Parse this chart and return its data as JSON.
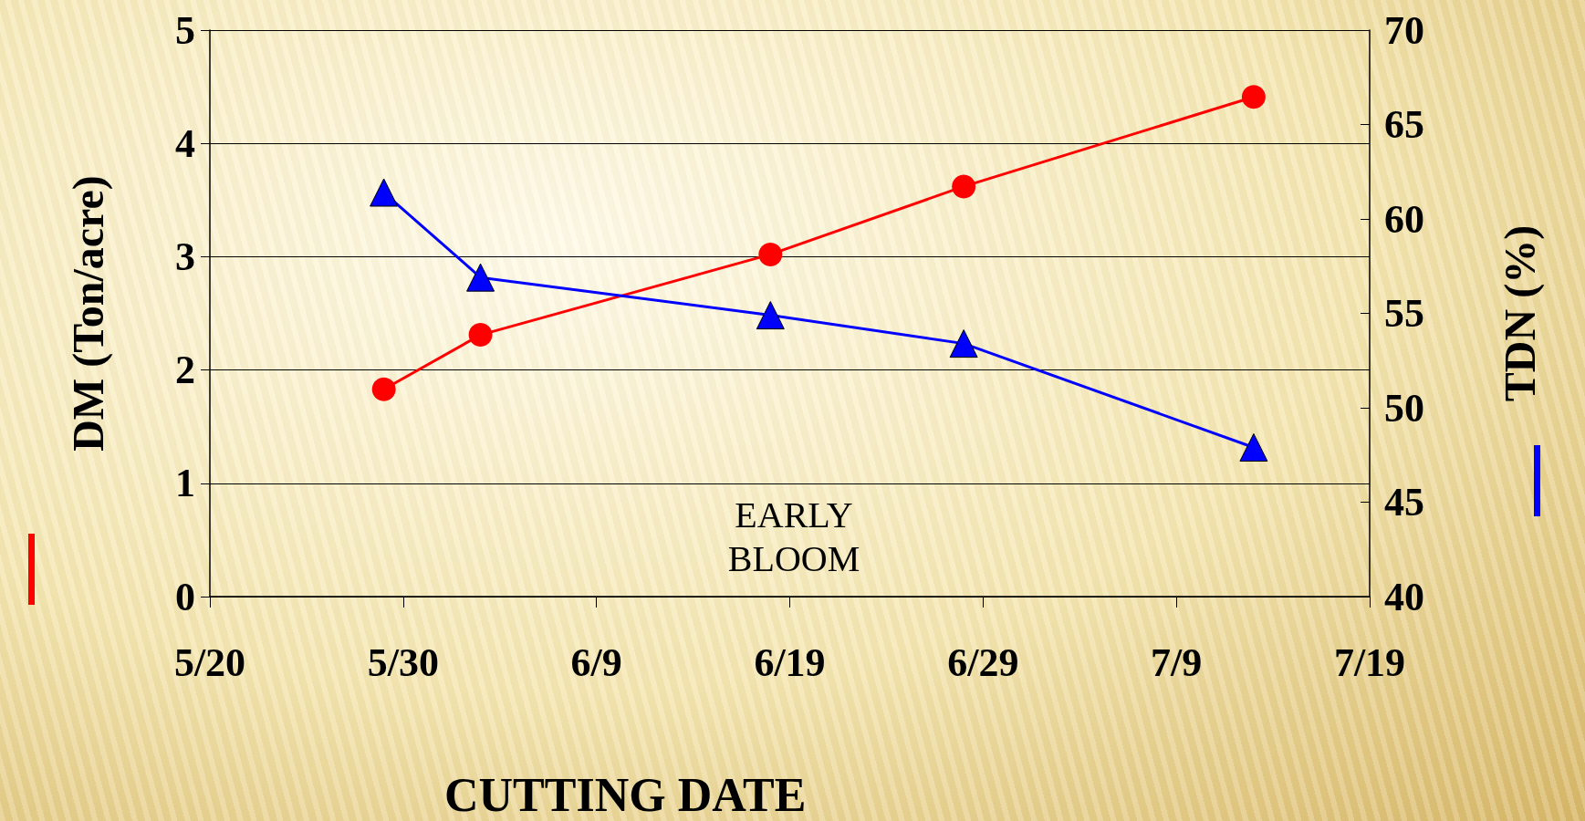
{
  "chart_data": {
    "type": "line",
    "xlabel": "CUTTING DATE",
    "ylabel": "DM (Ton/acre)",
    "y2label": "TDN (%)",
    "x": [
      "--05-29",
      "--06-03",
      "--06-18",
      "--06-28",
      "--07-13"
    ],
    "series": [
      {
        "color": "#ff0000",
        "marker": "circle",
        "values": [
          1.83,
          2.31,
          3.02,
          3.62,
          4.41
        ]
      },
      {
        "color": "#0000ff",
        "marker": "triangle",
        "axis": "y2",
        "values": [
          61.4,
          56.9,
          54.9,
          53.4,
          47.9
        ]
      }
    ],
    "xlim": [
      "--05-20",
      "--07-19"
    ],
    "xticks": [
      {
        "value": "--05-20",
        "label": "5/20"
      },
      {
        "value": "--05-30",
        "label": "5/30"
      },
      {
        "value": "--06-09",
        "label": "6/9"
      },
      {
        "value": "--06-19",
        "label": "6/19"
      },
      {
        "value": "--06-29",
        "label": "6/29"
      },
      {
        "value": "--07-09",
        "label": "7/9"
      },
      {
        "value": "--07-19",
        "label": "7/19"
      }
    ],
    "ylim": [
      0,
      5
    ],
    "yticks": [
      0,
      1,
      2,
      3,
      4,
      5
    ],
    "y2lim": [
      40,
      70
    ],
    "y2ticks": [
      40,
      45,
      50,
      55,
      60,
      65,
      70
    ],
    "grid": "y",
    "line_style": "solid",
    "annotations": [
      "EARLY\nBLOOM"
    ]
  }
}
